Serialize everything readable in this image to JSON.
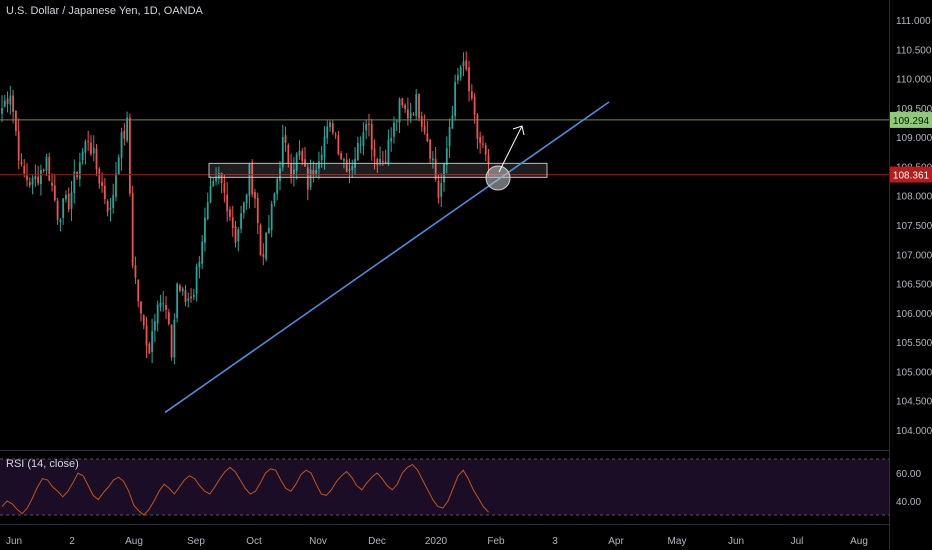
{
  "chart_title": "U.S. Dollar / Japanese Yen, 1D, OANDA",
  "colors": {
    "background": "#000000",
    "up": "#26a69a",
    "down": "#ef5350",
    "trendline": "#4a8fe0",
    "resistance_line": "#6e8a5a",
    "support_line": "#8b1a1a",
    "rsi_line": "#c0541e",
    "rsi_band": "#1c0d26",
    "label_green": "#8fc97a",
    "label_red": "#b71c1c"
  },
  "chart_data": {
    "type": "candlestick",
    "title": "U.S. Dollar / Japanese Yen, 1D, OANDA",
    "symbol": "USDJPY",
    "interval": "1D",
    "source": "OANDA",
    "ylim": [
      103.7,
      111.2
    ],
    "y_ticks": [
      "111.000",
      "110.500",
      "110.000",
      "109.500",
      "109.000",
      "108.500",
      "108.000",
      "107.500",
      "107.000",
      "106.500",
      "106.000",
      "105.500",
      "105.000",
      "104.500",
      "104.000"
    ],
    "x_ticks": [
      "Jun",
      "2",
      "Aug",
      "Sep",
      "Oct",
      "Nov",
      "Dec",
      "2020",
      "Feb",
      "3",
      "Apr",
      "May",
      "Jun",
      "Jul",
      "Aug"
    ],
    "price_path": [
      {
        "i": 0,
        "v": 109.5
      },
      {
        "i": 3,
        "v": 109.8
      },
      {
        "i": 7,
        "v": 108.4
      },
      {
        "i": 11,
        "v": 108.2
      },
      {
        "i": 16,
        "v": 108.6
      },
      {
        "i": 20,
        "v": 107.7
      },
      {
        "i": 24,
        "v": 107.9
      },
      {
        "i": 28,
        "v": 108.6
      },
      {
        "i": 31,
        "v": 109.0
      },
      {
        "i": 35,
        "v": 108.3
      },
      {
        "i": 39,
        "v": 107.7
      },
      {
        "i": 42,
        "v": 108.8
      },
      {
        "i": 45,
        "v": 109.2
      },
      {
        "i": 47,
        "v": 106.9
      },
      {
        "i": 50,
        "v": 105.9
      },
      {
        "i": 53,
        "v": 105.4
      },
      {
        "i": 56,
        "v": 106.3
      },
      {
        "i": 59,
        "v": 106.0
      },
      {
        "i": 61,
        "v": 105.3
      },
      {
        "i": 63,
        "v": 106.5
      },
      {
        "i": 66,
        "v": 106.2
      },
      {
        "i": 69,
        "v": 106.4
      },
      {
        "i": 72,
        "v": 107.3
      },
      {
        "i": 75,
        "v": 108.0
      },
      {
        "i": 78,
        "v": 108.3
      },
      {
        "i": 81,
        "v": 107.9
      },
      {
        "i": 84,
        "v": 107.3
      },
      {
        "i": 87,
        "v": 107.8
      },
      {
        "i": 89,
        "v": 108.4
      },
      {
        "i": 91,
        "v": 108.0
      },
      {
        "i": 93,
        "v": 107.0
      },
      {
        "i": 95,
        "v": 107.2
      },
      {
        "i": 98,
        "v": 108.0
      },
      {
        "i": 101,
        "v": 108.9
      },
      {
        "i": 104,
        "v": 108.5
      },
      {
        "i": 107,
        "v": 108.7
      },
      {
        "i": 110,
        "v": 108.2
      },
      {
        "i": 113,
        "v": 108.6
      },
      {
        "i": 116,
        "v": 109.0
      },
      {
        "i": 119,
        "v": 109.2
      },
      {
        "i": 122,
        "v": 108.7
      },
      {
        "i": 125,
        "v": 108.5
      },
      {
        "i": 128,
        "v": 108.8
      },
      {
        "i": 131,
        "v": 109.4
      },
      {
        "i": 134,
        "v": 108.7
      },
      {
        "i": 137,
        "v": 108.6
      },
      {
        "i": 140,
        "v": 109.0
      },
      {
        "i": 143,
        "v": 109.5
      },
      {
        "i": 146,
        "v": 109.4
      },
      {
        "i": 149,
        "v": 109.6
      },
      {
        "i": 152,
        "v": 109.2
      },
      {
        "i": 155,
        "v": 108.6
      },
      {
        "i": 157,
        "v": 108.0
      },
      {
        "i": 159,
        "v": 108.4
      },
      {
        "i": 161,
        "v": 109.2
      },
      {
        "i": 163,
        "v": 109.8
      },
      {
        "i": 165,
        "v": 110.2
      },
      {
        "i": 167,
        "v": 110.1
      },
      {
        "i": 169,
        "v": 109.5
      },
      {
        "i": 171,
        "v": 109.0
      },
      {
        "i": 173,
        "v": 108.8
      },
      {
        "i": 175,
        "v": 108.4
      }
    ],
    "drawn_support_zone": {
      "from": 108.3,
      "to": 108.45
    },
    "horizontal_levels": [
      {
        "value": 109.294,
        "label": "109.294"
      },
      {
        "value": 108.361,
        "label": "108.361"
      }
    ],
    "trendline": [
      {
        "date": "2019-08-26",
        "value": 104.3
      },
      {
        "date": "2020-04-01",
        "value": 109.6
      }
    ],
    "rsi": {
      "label": "RSI (14, close)",
      "ylim": [
        28,
        72
      ],
      "band": [
        30,
        70
      ],
      "y_ticks": [
        "60.00",
        "40.00"
      ],
      "values": [
        36,
        40,
        38,
        34,
        31,
        35,
        42,
        50,
        56,
        55,
        50,
        47,
        43,
        47,
        53,
        60,
        58,
        51,
        44,
        41,
        46,
        50,
        55,
        57,
        54,
        47,
        37,
        33,
        30,
        34,
        40,
        47,
        52,
        49,
        45,
        50,
        55,
        58,
        56,
        51,
        47,
        45,
        50,
        56,
        61,
        64,
        61,
        55,
        49,
        45,
        47,
        53,
        60,
        63,
        62,
        55,
        49,
        47,
        52,
        59,
        62,
        60,
        52,
        45,
        44,
        48,
        54,
        58,
        61,
        57,
        51,
        48,
        53,
        57,
        60,
        56,
        51,
        48,
        52,
        60,
        64,
        66,
        62,
        55,
        48,
        41,
        36,
        35,
        40,
        49,
        58,
        62,
        56,
        48,
        42,
        36,
        32
      ]
    }
  }
}
